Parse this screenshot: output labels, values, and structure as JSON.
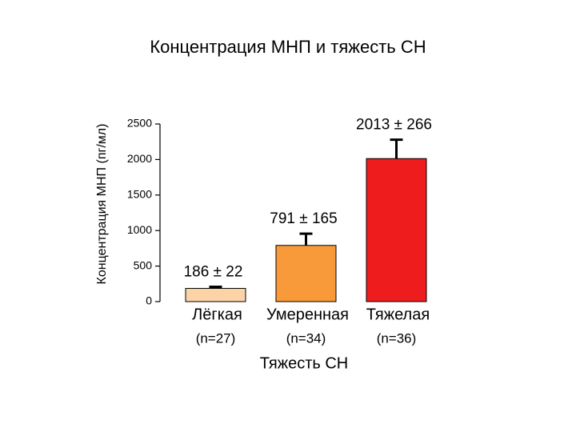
{
  "chart_data": {
    "type": "bar",
    "title": "Концентрация МНП и тяжесть СН",
    "x_label": "Тяжесть СН",
    "y_label": "Концентрация МНП (пг/мл)",
    "categories": [
      "Лёгкая",
      "Умеренная",
      "Тяжелая"
    ],
    "category_notes": [
      "(n=27)",
      "(n=34)",
      "(n=36)"
    ],
    "values": [
      186,
      791,
      2013
    ],
    "errors": [
      22,
      165,
      266
    ],
    "value_labels": [
      "186 ± 22",
      "791 ± 165",
      "2013 ± 266"
    ],
    "colors": [
      "#fbd3a6",
      "#f89a3a",
      "#ee1c1c"
    ],
    "ylim": [
      0,
      2500
    ],
    "yticks": [
      0,
      500,
      1000,
      1500,
      2000,
      2500
    ]
  }
}
